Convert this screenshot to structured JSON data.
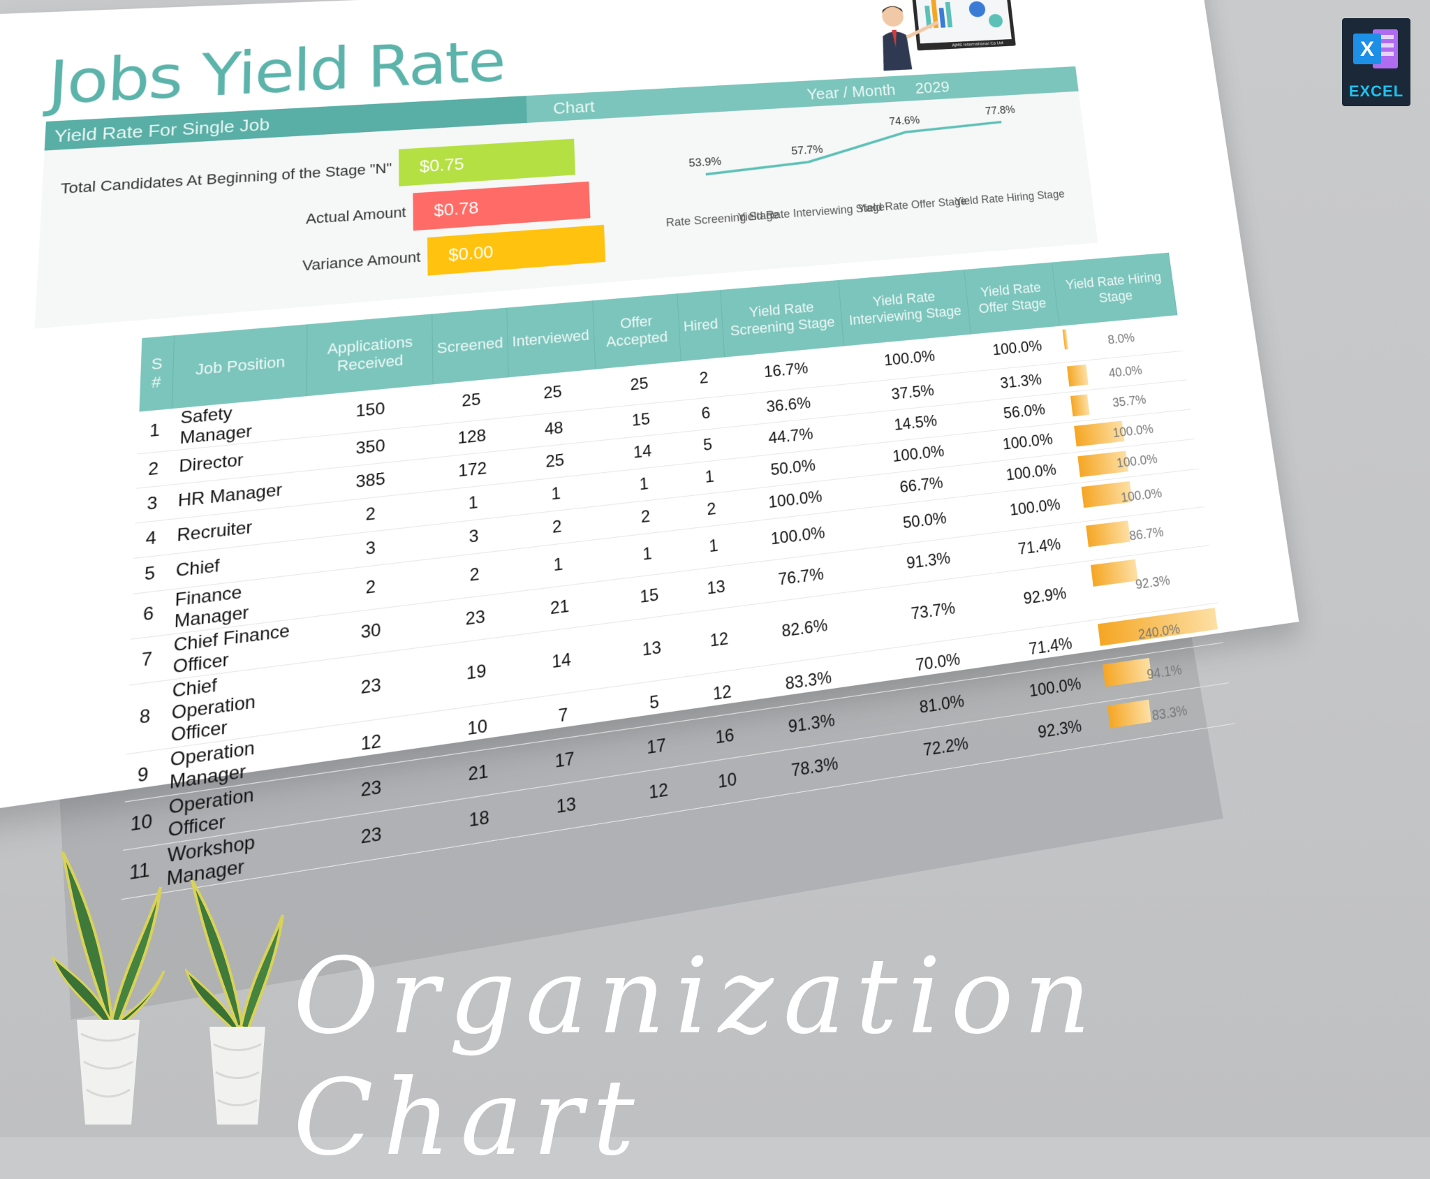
{
  "title": "Jobs Yield Rate",
  "header_band": {
    "section": "Yield Rate For Single Job",
    "chart": "Chart",
    "year_month_label": "Year / Month",
    "year_value": "2029"
  },
  "summary": {
    "rows": [
      {
        "label": "Total Candidates At Beginning of the Stage \"N\"",
        "value": "$0.75",
        "color": "#b5e043"
      },
      {
        "label": "Actual Amount",
        "value": "$0.78",
        "color": "#ff6b66"
      },
      {
        "label": "Variance Amount",
        "value": "$0.00",
        "color": "#ffc20e"
      }
    ]
  },
  "chart_data": {
    "type": "line",
    "categories": [
      "Yield Rate Screening Stage",
      "Yield Rate Interviewing Stage",
      "Yield Rate Offer Stage",
      "Yield Rate Hiring Stage"
    ],
    "values": [
      53.9,
      57.7,
      74.6,
      77.8
    ],
    "labels": [
      "53.9%",
      "57.7%",
      "74.6%",
      "77.8%"
    ],
    "color": "#5bc0b6"
  },
  "table": {
    "headers": [
      "S #",
      "Job Position",
      "Applications Received",
      "Screened",
      "Interviewed",
      "Offer Accepted",
      "Hired",
      "Yield Rate Screening Stage",
      "Yield Rate Interviewing Stage",
      "Yield Rate Offer Stage",
      "Yield Rate Hiring Stage"
    ],
    "rows": [
      {
        "sn": "1",
        "position": "Safety Manager",
        "applications": "150",
        "screened": "25",
        "interviewed": "25",
        "offer": "25",
        "hired": "2",
        "ys": "16.7%",
        "yi": "100.0%",
        "yo": "100.0%",
        "yh": "8.0%",
        "yh_value": 8.0
      },
      {
        "sn": "2",
        "position": "Director",
        "applications": "350",
        "screened": "128",
        "interviewed": "48",
        "offer": "15",
        "hired": "6",
        "ys": "36.6%",
        "yi": "37.5%",
        "yo": "31.3%",
        "yh": "40.0%",
        "yh_value": 40.0
      },
      {
        "sn": "3",
        "position": "HR Manager",
        "applications": "385",
        "screened": "172",
        "interviewed": "25",
        "offer": "14",
        "hired": "5",
        "ys": "44.7%",
        "yi": "14.5%",
        "yo": "56.0%",
        "yh": "35.7%",
        "yh_value": 35.7
      },
      {
        "sn": "4",
        "position": "Recruiter",
        "applications": "2",
        "screened": "1",
        "interviewed": "1",
        "offer": "1",
        "hired": "1",
        "ys": "50.0%",
        "yi": "100.0%",
        "yo": "100.0%",
        "yh": "100.0%",
        "yh_value": 100.0
      },
      {
        "sn": "5",
        "position": "Chief",
        "applications": "3",
        "screened": "3",
        "interviewed": "2",
        "offer": "2",
        "hired": "2",
        "ys": "100.0%",
        "yi": "66.7%",
        "yo": "100.0%",
        "yh": "100.0%",
        "yh_value": 100.0
      },
      {
        "sn": "6",
        "position": "Finance Manager",
        "applications": "2",
        "screened": "2",
        "interviewed": "1",
        "offer": "1",
        "hired": "1",
        "ys": "100.0%",
        "yi": "50.0%",
        "yo": "100.0%",
        "yh": "100.0%",
        "yh_value": 100.0
      },
      {
        "sn": "7",
        "position": "Chief Finance Officer",
        "applications": "30",
        "screened": "23",
        "interviewed": "21",
        "offer": "15",
        "hired": "13",
        "ys": "76.7%",
        "yi": "91.3%",
        "yo": "71.4%",
        "yh": "86.7%",
        "yh_value": 86.7
      },
      {
        "sn": "8",
        "position": "Chief Operation Officer",
        "applications": "23",
        "screened": "19",
        "interviewed": "14",
        "offer": "13",
        "hired": "12",
        "ys": "82.6%",
        "yi": "73.7%",
        "yo": "92.9%",
        "yh": "92.3%",
        "yh_value": 92.3
      },
      {
        "sn": "9",
        "position": "Operation Manager",
        "applications": "12",
        "screened": "10",
        "interviewed": "7",
        "offer": "5",
        "hired": "12",
        "ys": "83.3%",
        "yi": "70.0%",
        "yo": "71.4%",
        "yh": "240.0%",
        "yh_value": 240.0
      },
      {
        "sn": "10",
        "position": "Operation Officer",
        "applications": "23",
        "screened": "21",
        "interviewed": "17",
        "offer": "17",
        "hired": "16",
        "ys": "91.3%",
        "yi": "81.0%",
        "yo": "100.0%",
        "yh": "94.1%",
        "yh_value": 94.1
      },
      {
        "sn": "11",
        "position": "Workshop Manager",
        "applications": "23",
        "screened": "18",
        "interviewed": "13",
        "offer": "12",
        "hired": "10",
        "ys": "78.3%",
        "yi": "72.2%",
        "yo": "92.3%",
        "yh": "83.3%",
        "yh_value": 83.3
      }
    ]
  },
  "badge": {
    "letter": "X",
    "caption": "EXCEL"
  },
  "presenter_caption": "AJMS International Co Ltd",
  "footer_script": "Organization Chart"
}
